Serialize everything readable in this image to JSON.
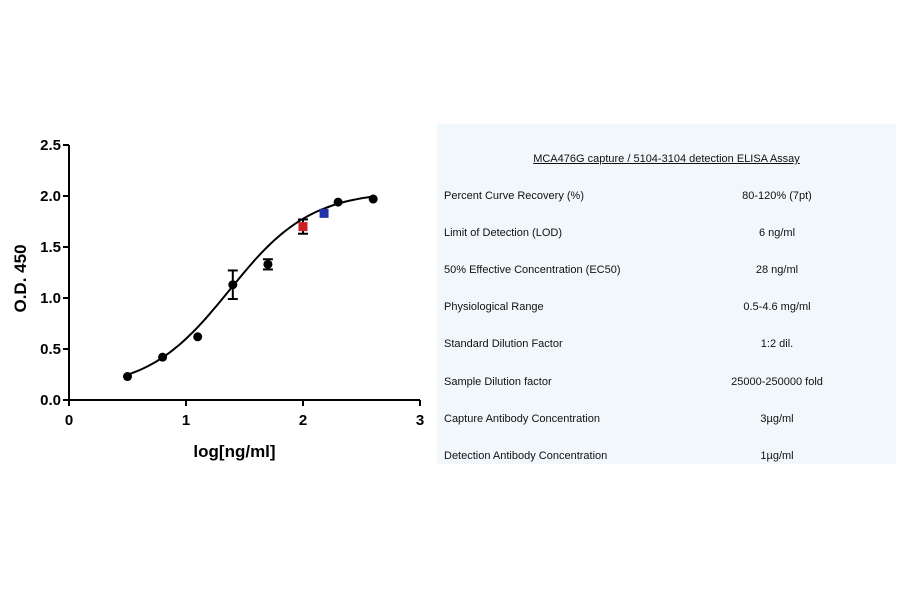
{
  "chart_data": {
    "type": "scatter",
    "xlabel": "log[ng/ml]",
    "ylabel": "O.D. 450",
    "xlim": [
      0,
      3
    ],
    "ylim": [
      0,
      2.5
    ],
    "x_ticks": [
      "0",
      "1",
      "2",
      "3"
    ],
    "y_ticks": [
      "0.0",
      "0.5",
      "1.0",
      "1.5",
      "2.0",
      "2.5"
    ],
    "grid": false,
    "fit_curve": "sigmoidal (4-parameter logistic)",
    "series": [
      {
        "color": "#000000",
        "marker": "circle",
        "points": [
          {
            "x": 0.5,
            "y": 0.23
          },
          {
            "x": 0.8,
            "y": 0.42
          },
          {
            "x": 1.1,
            "y": 0.62
          },
          {
            "x": 1.4,
            "y": 1.13,
            "err": 0.14
          },
          {
            "x": 1.7,
            "y": 1.33,
            "err": 0.05
          },
          {
            "x": 2.3,
            "y": 1.94
          },
          {
            "x": 2.6,
            "y": 1.97
          }
        ]
      },
      {
        "color": "#cc1f1f",
        "marker": "square",
        "points": [
          {
            "x": 2.0,
            "y": 1.7,
            "err": 0.07
          }
        ]
      },
      {
        "color": "#2233aa",
        "marker": "square",
        "points": [
          {
            "x": 2.18,
            "y": 1.83
          }
        ]
      }
    ]
  },
  "assay_table": {
    "title": "MCA476G capture / 5104-3104 detection ELISA Assay",
    "rows": [
      {
        "parameter": "Percent Curve Recovery (%)",
        "value": "80-120% (7pt)"
      },
      {
        "parameter": "Limit of Detection (LOD)",
        "value": "6 ng/ml"
      },
      {
        "parameter": "50% Effective Concentration (EC50)",
        "value": "28 ng/ml"
      },
      {
        "parameter": "Physiological Range",
        "value": "0.5-4.6 mg/ml"
      },
      {
        "parameter": "Standard Dilution Factor",
        "value": "1:2 dil."
      },
      {
        "parameter": "Sample Dilution factor",
        "value": "25000-250000 fold"
      },
      {
        "parameter": "Capture Antibody Concentration",
        "value": "3µg/ml"
      },
      {
        "parameter": "Detection Antibody Concentration",
        "value": "1µg/ml"
      }
    ]
  }
}
